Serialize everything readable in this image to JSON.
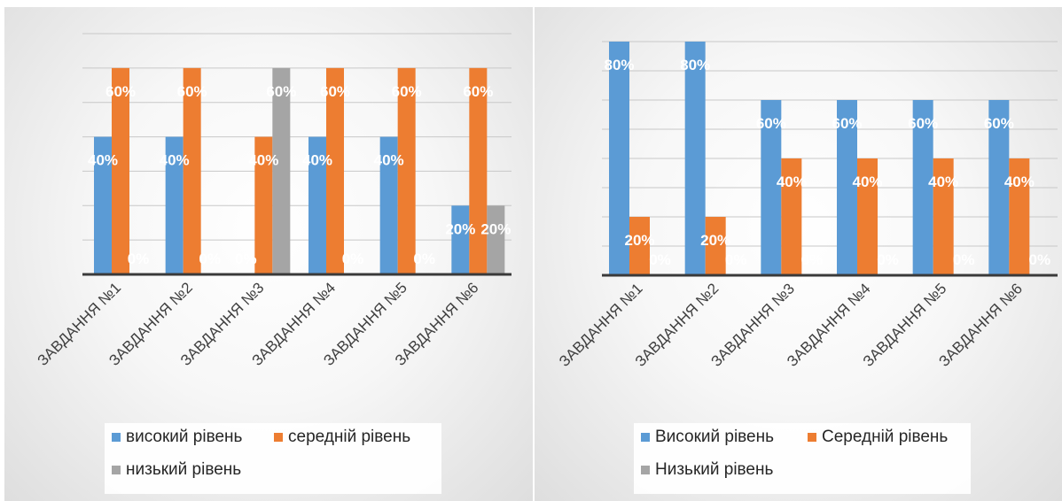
{
  "chart_data": [
    {
      "type": "bar",
      "categories": [
        "ЗАВДАННЯ №1",
        "ЗАВДАННЯ №2",
        "ЗАВДАННЯ №3",
        "ЗАВДАННЯ №4",
        "ЗАВДАННЯ №5",
        "ЗАВДАННЯ №6"
      ],
      "series": [
        {
          "name": "високий рівень",
          "color": "#5b9bd5",
          "values": [
            40,
            40,
            0,
            40,
            40,
            20
          ],
          "labels": [
            "40%",
            "40%",
            "0%",
            "40%",
            "40%",
            "20%"
          ]
        },
        {
          "name": "середній рівень",
          "color": "#ed7d31",
          "values": [
            60,
            60,
            40,
            60,
            60,
            60
          ],
          "labels": [
            "60%",
            "60%",
            "40%",
            "60%",
            "60%",
            "60%"
          ]
        },
        {
          "name": "низький рівень",
          "color": "#a5a5a5",
          "values": [
            0,
            0,
            60,
            0,
            0,
            20
          ],
          "labels": [
            "0%",
            "0%",
            "60%",
            "0%",
            "0%",
            "20%"
          ]
        }
      ],
      "ylim": [
        0,
        70
      ],
      "grid": true,
      "legend": "bottom"
    },
    {
      "type": "bar",
      "categories": [
        "ЗАВДАННЯ №1",
        "ЗАВДАННЯ №2",
        "ЗАВДАННЯ №3",
        "ЗАВДАННЯ №4",
        "ЗАВДАННЯ №5",
        "ЗАВДАННЯ №6"
      ],
      "series": [
        {
          "name": "Високий рівень",
          "color": "#5b9bd5",
          "values": [
            80,
            80,
            60,
            60,
            60,
            60
          ],
          "labels": [
            "80%",
            "80%",
            "60%",
            "60%",
            "60%",
            "60%"
          ]
        },
        {
          "name": "Середній рівень",
          "color": "#ed7d31",
          "values": [
            20,
            20,
            40,
            40,
            40,
            40
          ],
          "labels": [
            "20%",
            "20%",
            "40%",
            "40%",
            "40%",
            "40%"
          ]
        },
        {
          "name": "Низький рівень",
          "color": "#a5a5a5",
          "values": [
            0,
            0,
            0,
            0,
            0,
            0
          ],
          "labels": [
            "0%",
            "0%",
            "0%",
            "0%",
            "0%",
            "0%"
          ]
        }
      ],
      "ylim": [
        0,
        80
      ],
      "grid": true,
      "legend": "bottom"
    }
  ]
}
